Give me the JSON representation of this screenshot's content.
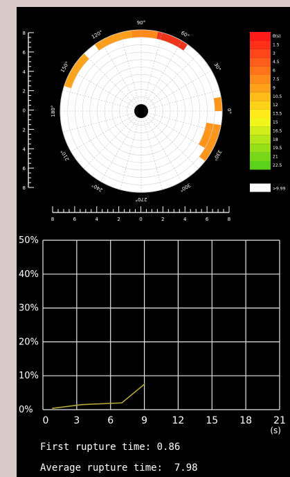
{
  "chart_data": [
    {
      "type": "polar-heatmap",
      "angle_labels": [
        "0°",
        "30°",
        "60°",
        "90°",
        "120°",
        "150°",
        "180°",
        "210°",
        "240°",
        "270°",
        "300°",
        "330°"
      ],
      "colorbar": {
        "title": "θ(s)",
        "ticks": [
          "θ(s)",
          "1.5",
          "3",
          "4.5",
          "6",
          "7.5",
          "9",
          "10.5",
          "12",
          "13.5",
          "15",
          "16.5",
          "18",
          "19.5",
          "21",
          "22.5"
        ],
        "colors": [
          "#ff1a1a",
          "#ff2f1a",
          "#ff461a",
          "#ff5d1a",
          "#ff741a",
          "#ff8b1a",
          "#ffa21a",
          "#ffbb1a",
          "#ffd21a",
          "#ffe91a",
          "#f0f51a",
          "#d2ee1a",
          "#b4e71a",
          "#96e01a",
          "#78d91a",
          "#5ad21a"
        ],
        "overflow_label": ">9.99",
        "overflow_color": "#ffffff"
      },
      "segments": [
        {
          "from_deg": 55,
          "to_deg": 78,
          "rings": 1,
          "color": "#f0341a"
        },
        {
          "from_deg": 78,
          "to_deg": 97,
          "rings": 1,
          "color": "#ff8a1a"
        },
        {
          "from_deg": 97,
          "to_deg": 125,
          "rings": 1,
          "color": "#ff9e1a"
        },
        {
          "from_deg": 135,
          "to_deg": 162,
          "rings": 1,
          "color": "#ffa41a"
        },
        {
          "from_deg": 322,
          "to_deg": 350,
          "rings": 1,
          "color": "#ff951a"
        },
        {
          "from_deg": 330,
          "to_deg": 350,
          "rings": 2,
          "color": "#ff951a"
        },
        {
          "from_deg": 0,
          "to_deg": 10,
          "rings": 1,
          "color": "#ff951a"
        }
      ],
      "ring_count": 10,
      "left_ruler_ticks": [
        "8",
        "6",
        "4",
        "2",
        "0",
        "2",
        "4",
        "6",
        "8"
      ],
      "bottom_ruler_ticks": [
        "8",
        "6",
        "4",
        "2",
        "0",
        "2",
        "4",
        "6",
        "8"
      ]
    },
    {
      "type": "line",
      "x": [
        0.86,
        3.5,
        7,
        9
      ],
      "y": [
        0.4,
        1.5,
        2.0,
        7.5
      ],
      "line_color": "#b5a636",
      "xlim": [
        0,
        21
      ],
      "ylim": [
        0,
        50
      ],
      "x_ticks": [
        "0",
        "3",
        "6",
        "9",
        "12",
        "15",
        "18",
        "21"
      ],
      "x_unit": "(s)",
      "y_ticks": [
        "0%",
        "10%",
        "20%",
        "30%",
        "40%",
        "50%"
      ],
      "grid": true
    }
  ],
  "stats": {
    "first_label": "First rupture time:",
    "first_value": "0.86",
    "avg_label": "Average rupture time:",
    "avg_value": "7.98"
  }
}
